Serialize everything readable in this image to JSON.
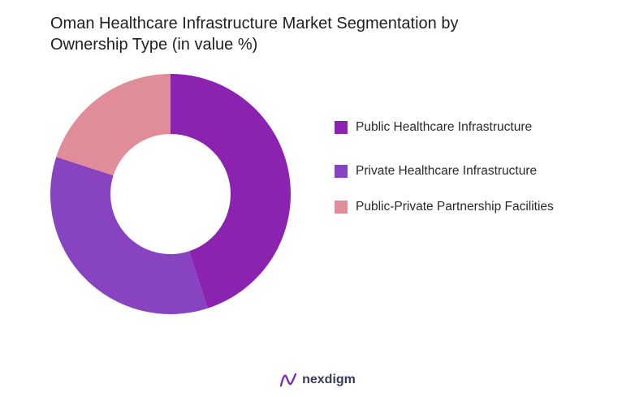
{
  "title_lines": [
    "Oman Healthcare Infrastructure Market Segmentation by",
    "Ownership Type (in value %)"
  ],
  "chart_data": {
    "type": "pie",
    "title": "Oman Healthcare Infrastructure Market Segmentation by Ownership Type (in value %)",
    "donut": true,
    "legend_position": "right",
    "series": [
      {
        "name": "Public Healthcare Infrastructure",
        "value": 45,
        "color": "#8b22b0"
      },
      {
        "name": "Private Healthcare Infrastructure",
        "value": 35,
        "color": "#8844c0"
      },
      {
        "name": "Public-Private Partnership Facilities",
        "value": 20,
        "color": "#e08d99"
      }
    ]
  },
  "brand": {
    "name": "nexdigm",
    "icon": "nexdigm-logo-icon",
    "color": "#7a2fb0"
  }
}
